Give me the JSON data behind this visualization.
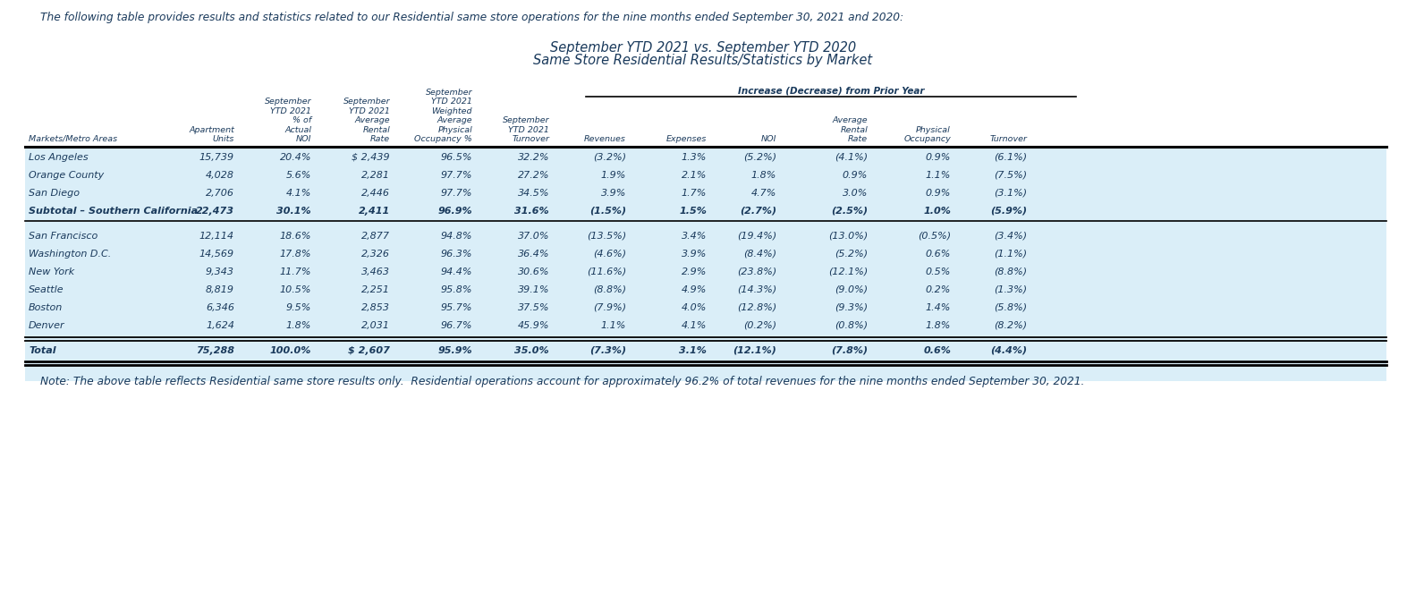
{
  "title_line1": "September YTD 2021 vs. September YTD 2020",
  "title_line2": "Same Store Residential Results/Statistics by Market",
  "header_note": "The following table provides results and statistics related to our Residential same store operations for the nine months ended September 30, 2021 and 2020:",
  "footer_note": "Note: The above table reflects Residential same store results only.  Residential operations account for approximately 96.2% of total revenues for the nine months ended September 30, 2021.",
  "increase_decrease_label": "Increase (Decrease) from Prior Year",
  "rows": [
    [
      "Los Angeles",
      "15,739",
      "20.4%",
      "$ 2,439",
      "96.5%",
      "32.2%",
      "(3.2%)",
      "1.3%",
      "(5.2%)",
      "(4.1%)",
      "0.9%",
      "(6.1%)"
    ],
    [
      "Orange County",
      "4,028",
      "5.6%",
      "2,281",
      "97.7%",
      "27.2%",
      "1.9%",
      "2.1%",
      "1.8%",
      "0.9%",
      "1.1%",
      "(7.5%)"
    ],
    [
      "San Diego",
      "2,706",
      "4.1%",
      "2,446",
      "97.7%",
      "34.5%",
      "3.9%",
      "1.7%",
      "4.7%",
      "3.0%",
      "0.9%",
      "(3.1%)"
    ],
    [
      "Subtotal – Southern California",
      "22,473",
      "30.1%",
      "2,411",
      "96.9%",
      "31.6%",
      "(1.5%)",
      "1.5%",
      "(2.7%)",
      "(2.5%)",
      "1.0%",
      "(5.9%)"
    ],
    [
      "San Francisco",
      "12,114",
      "18.6%",
      "2,877",
      "94.8%",
      "37.0%",
      "(13.5%)",
      "3.4%",
      "(19.4%)",
      "(13.0%)",
      "(0.5%)",
      "(3.4%)"
    ],
    [
      "Washington D.C.",
      "14,569",
      "17.8%",
      "2,326",
      "96.3%",
      "36.4%",
      "(4.6%)",
      "3.9%",
      "(8.4%)",
      "(5.2%)",
      "0.6%",
      "(1.1%)"
    ],
    [
      "New York",
      "9,343",
      "11.7%",
      "3,463",
      "94.4%",
      "30.6%",
      "(11.6%)",
      "2.9%",
      "(23.8%)",
      "(12.1%)",
      "0.5%",
      "(8.8%)"
    ],
    [
      "Seattle",
      "8,819",
      "10.5%",
      "2,251",
      "95.8%",
      "39.1%",
      "(8.8%)",
      "4.9%",
      "(14.3%)",
      "(9.0%)",
      "0.2%",
      "(1.3%)"
    ],
    [
      "Boston",
      "6,346",
      "9.5%",
      "2,853",
      "95.7%",
      "37.5%",
      "(7.9%)",
      "4.0%",
      "(12.8%)",
      "(9.3%)",
      "1.4%",
      "(5.8%)"
    ],
    [
      "Denver",
      "1,624",
      "1.8%",
      "2,031",
      "96.7%",
      "45.9%",
      "1.1%",
      "4.1%",
      "(0.2%)",
      "(0.8%)",
      "1.8%",
      "(8.2%)"
    ],
    [
      "Total",
      "75,288",
      "100.0%",
      "$ 2,607",
      "95.9%",
      "35.0%",
      "(7.3%)",
      "3.1%",
      "(12.1%)",
      "(7.8%)",
      "0.6%",
      "(4.4%)"
    ]
  ],
  "subtotal_row_idx": 3,
  "total_row_idx": 10,
  "gap_after_subtotal": true,
  "gap_before_total": true,
  "bg_color": "#daeef8",
  "text_color": "#1a3a5c",
  "title_color": "#1a3a5c",
  "note_color": "#1a3a5c"
}
